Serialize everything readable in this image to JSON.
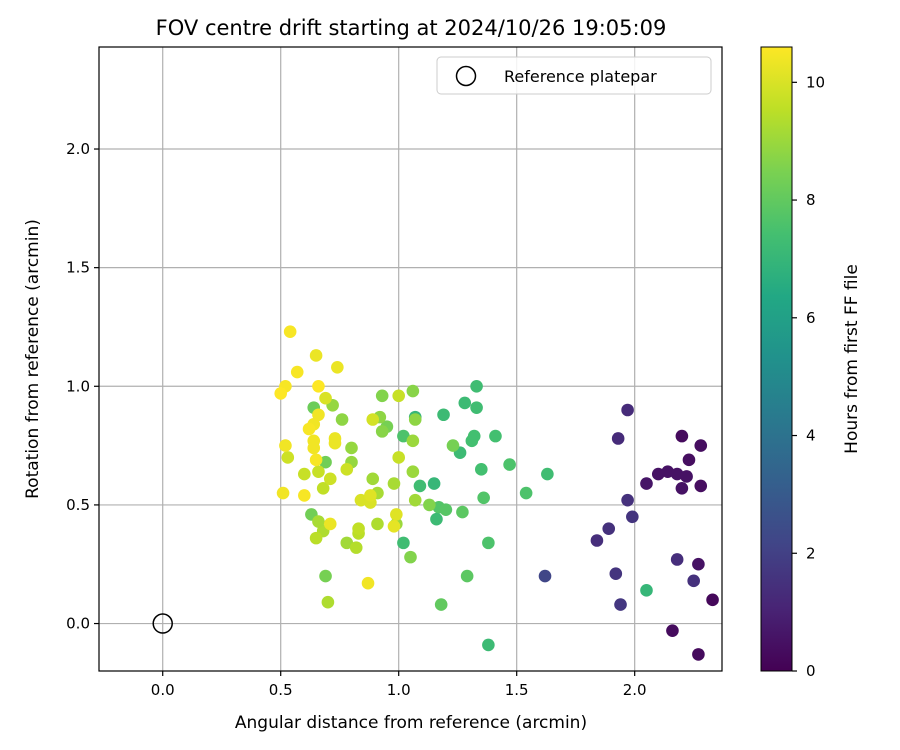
{
  "chart_data": {
    "type": "scatter",
    "title": "FOV centre drift starting at 2024/10/26 19:05:09",
    "xlabel": "Angular distance from reference (arcmin)",
    "ylabel": "Rotation from reference (arcmin)",
    "xlim": [
      -0.27,
      2.37
    ],
    "ylim": [
      -0.2,
      2.43
    ],
    "x_ticks": [
      "0.0",
      "0.5",
      "1.0",
      "1.5",
      "2.0"
    ],
    "x_tick_values": [
      0,
      0.5,
      1.0,
      1.5,
      2.0
    ],
    "y_ticks": [
      "0.0",
      "0.5",
      "1.0",
      "1.5",
      "2.0"
    ],
    "y_tick_values": [
      0,
      0.5,
      1.0,
      1.5,
      2.0
    ],
    "grid": true,
    "legend": {
      "position": "top-right",
      "entries": [
        "Reference platepar"
      ]
    },
    "reference_point": {
      "x": 0.0,
      "y": 0.0
    },
    "colorbar": {
      "label": "Hours from first FF file",
      "range": [
        0,
        10.6
      ],
      "ticks": [
        "0",
        "2",
        "4",
        "6",
        "8",
        "10"
      ],
      "tick_values": [
        0,
        2,
        4,
        6,
        8,
        10
      ],
      "colormap": "viridis"
    },
    "points": [
      {
        "x": 2.2,
        "y": 0.79,
        "h": 0.3
      },
      {
        "x": 2.28,
        "y": 0.75,
        "h": 0.4
      },
      {
        "x": 2.23,
        "y": 0.69,
        "h": 0.4
      },
      {
        "x": 2.1,
        "y": 0.63,
        "h": 0.5
      },
      {
        "x": 2.14,
        "y": 0.64,
        "h": 0.5
      },
      {
        "x": 2.18,
        "y": 0.63,
        "h": 0.5
      },
      {
        "x": 2.22,
        "y": 0.62,
        "h": 0.5
      },
      {
        "x": 2.05,
        "y": 0.59,
        "h": 0.6
      },
      {
        "x": 2.2,
        "y": 0.57,
        "h": 0.5
      },
      {
        "x": 2.28,
        "y": 0.58,
        "h": 0.4
      },
      {
        "x": 2.33,
        "y": 0.1,
        "h": 0.2
      },
      {
        "x": 2.16,
        "y": -0.03,
        "h": 0.3
      },
      {
        "x": 2.27,
        "y": -0.13,
        "h": 0.3
      },
      {
        "x": 2.27,
        "y": 0.25,
        "h": 0.5
      },
      {
        "x": 1.97,
        "y": 0.9,
        "h": 1.3
      },
      {
        "x": 1.93,
        "y": 0.78,
        "h": 1.3
      },
      {
        "x": 1.97,
        "y": 0.52,
        "h": 1.5
      },
      {
        "x": 1.99,
        "y": 0.45,
        "h": 1.6
      },
      {
        "x": 1.89,
        "y": 0.4,
        "h": 1.5
      },
      {
        "x": 1.84,
        "y": 0.35,
        "h": 1.4
      },
      {
        "x": 2.18,
        "y": 0.27,
        "h": 1.4
      },
      {
        "x": 2.25,
        "y": 0.18,
        "h": 1.5
      },
      {
        "x": 1.92,
        "y": 0.21,
        "h": 1.6
      },
      {
        "x": 1.94,
        "y": 0.08,
        "h": 1.7
      },
      {
        "x": 1.62,
        "y": 0.2,
        "h": 2.2
      },
      {
        "x": 2.05,
        "y": 0.14,
        "h": 7.0
      },
      {
        "x": 1.33,
        "y": 1.0,
        "h": 7.3
      },
      {
        "x": 1.28,
        "y": 0.93,
        "h": 7.2
      },
      {
        "x": 1.33,
        "y": 0.91,
        "h": 7.3
      },
      {
        "x": 1.19,
        "y": 0.88,
        "h": 7.2
      },
      {
        "x": 1.07,
        "y": 0.87,
        "h": 7.0
      },
      {
        "x": 1.41,
        "y": 0.79,
        "h": 7.4
      },
      {
        "x": 1.32,
        "y": 0.79,
        "h": 7.4
      },
      {
        "x": 1.31,
        "y": 0.77,
        "h": 7.4
      },
      {
        "x": 1.26,
        "y": 0.72,
        "h": 7.2
      },
      {
        "x": 1.47,
        "y": 0.67,
        "h": 7.6
      },
      {
        "x": 1.35,
        "y": 0.65,
        "h": 7.4
      },
      {
        "x": 1.63,
        "y": 0.63,
        "h": 7.3
      },
      {
        "x": 1.09,
        "y": 0.58,
        "h": 7.3
      },
      {
        "x": 1.15,
        "y": 0.59,
        "h": 7.0
      },
      {
        "x": 1.54,
        "y": 0.55,
        "h": 7.6
      },
      {
        "x": 1.36,
        "y": 0.53,
        "h": 7.7
      },
      {
        "x": 1.17,
        "y": 0.49,
        "h": 7.7
      },
      {
        "x": 1.2,
        "y": 0.48,
        "h": 7.8
      },
      {
        "x": 1.27,
        "y": 0.47,
        "h": 7.9
      },
      {
        "x": 1.16,
        "y": 0.44,
        "h": 7.2
      },
      {
        "x": 1.02,
        "y": 0.34,
        "h": 7.3
      },
      {
        "x": 1.38,
        "y": 0.34,
        "h": 7.6
      },
      {
        "x": 1.29,
        "y": 0.2,
        "h": 7.9
      },
      {
        "x": 1.18,
        "y": 0.08,
        "h": 8.0
      },
      {
        "x": 1.38,
        "y": -0.09,
        "h": 7.2
      },
      {
        "x": 1.02,
        "y": 0.79,
        "h": 7.6
      },
      {
        "x": 0.64,
        "y": 0.91,
        "h": 8.2
      },
      {
        "x": 0.69,
        "y": 0.68,
        "h": 8.3
      },
      {
        "x": 0.63,
        "y": 0.46,
        "h": 8.3
      },
      {
        "x": 0.69,
        "y": 0.2,
        "h": 8.4
      },
      {
        "x": 1.23,
        "y": 0.75,
        "h": 8.4
      },
      {
        "x": 1.13,
        "y": 0.5,
        "h": 8.6
      },
      {
        "x": 1.05,
        "y": 0.28,
        "h": 8.6
      },
      {
        "x": 0.95,
        "y": 0.83,
        "h": 8.4
      },
      {
        "x": 0.93,
        "y": 0.96,
        "h": 8.6
      },
      {
        "x": 1.06,
        "y": 0.98,
        "h": 8.7
      },
      {
        "x": 0.92,
        "y": 0.87,
        "h": 8.8
      },
      {
        "x": 0.93,
        "y": 0.81,
        "h": 8.7
      },
      {
        "x": 0.76,
        "y": 0.86,
        "h": 8.8
      },
      {
        "x": 0.72,
        "y": 0.92,
        "h": 8.9
      },
      {
        "x": 0.8,
        "y": 0.74,
        "h": 8.9
      },
      {
        "x": 0.8,
        "y": 0.68,
        "h": 8.9
      },
      {
        "x": 1.07,
        "y": 0.86,
        "h": 8.8
      },
      {
        "x": 1.06,
        "y": 0.77,
        "h": 9.0
      },
      {
        "x": 1.06,
        "y": 0.64,
        "h": 9.0
      },
      {
        "x": 1.07,
        "y": 0.52,
        "h": 9.1
      },
      {
        "x": 0.89,
        "y": 0.61,
        "h": 9.1
      },
      {
        "x": 0.91,
        "y": 0.55,
        "h": 9.2
      },
      {
        "x": 0.98,
        "y": 0.59,
        "h": 9.2
      },
      {
        "x": 0.91,
        "y": 0.42,
        "h": 9.3
      },
      {
        "x": 0.99,
        "y": 0.42,
        "h": 9.0
      },
      {
        "x": 0.78,
        "y": 0.34,
        "h": 9.1
      },
      {
        "x": 0.7,
        "y": 0.09,
        "h": 9.3
      },
      {
        "x": 0.68,
        "y": 0.39,
        "h": 9.3
      },
      {
        "x": 0.66,
        "y": 0.43,
        "h": 9.2
      },
      {
        "x": 0.82,
        "y": 0.32,
        "h": 9.4
      },
      {
        "x": 0.83,
        "y": 0.38,
        "h": 9.5
      },
      {
        "x": 0.83,
        "y": 0.4,
        "h": 9.6
      },
      {
        "x": 0.65,
        "y": 0.36,
        "h": 9.5
      },
      {
        "x": 0.68,
        "y": 0.57,
        "h": 9.6
      },
      {
        "x": 0.6,
        "y": 0.63,
        "h": 9.7
      },
      {
        "x": 0.66,
        "y": 0.64,
        "h": 9.7
      },
      {
        "x": 0.78,
        "y": 0.65,
        "h": 9.8
      },
      {
        "x": 0.71,
        "y": 0.61,
        "h": 9.8
      },
      {
        "x": 0.53,
        "y": 0.7,
        "h": 9.8
      },
      {
        "x": 1.0,
        "y": 0.7,
        "h": 9.7
      },
      {
        "x": 0.89,
        "y": 0.86,
        "h": 9.9
      },
      {
        "x": 0.69,
        "y": 0.95,
        "h": 10.0
      },
      {
        "x": 1.0,
        "y": 0.96,
        "h": 9.7
      },
      {
        "x": 0.84,
        "y": 0.52,
        "h": 10.0
      },
      {
        "x": 0.88,
        "y": 0.51,
        "h": 10.0
      },
      {
        "x": 0.88,
        "y": 0.54,
        "h": 10.1
      },
      {
        "x": 0.99,
        "y": 0.46,
        "h": 10.1
      },
      {
        "x": 0.98,
        "y": 0.41,
        "h": 10.2
      },
      {
        "x": 0.71,
        "y": 0.42,
        "h": 10.3
      },
      {
        "x": 0.87,
        "y": 0.17,
        "h": 10.4
      },
      {
        "x": 0.64,
        "y": 0.77,
        "h": 10.4
      },
      {
        "x": 0.64,
        "y": 0.74,
        "h": 10.4
      },
      {
        "x": 0.65,
        "y": 0.69,
        "h": 10.5
      },
      {
        "x": 0.73,
        "y": 0.78,
        "h": 10.3
      },
      {
        "x": 0.73,
        "y": 0.76,
        "h": 10.3
      },
      {
        "x": 0.66,
        "y": 0.88,
        "h": 10.4
      },
      {
        "x": 0.64,
        "y": 0.84,
        "h": 10.4
      },
      {
        "x": 0.62,
        "y": 0.82,
        "h": 10.5
      },
      {
        "x": 0.66,
        "y": 1.0,
        "h": 10.6
      },
      {
        "x": 0.65,
        "y": 1.13,
        "h": 10.3
      },
      {
        "x": 0.74,
        "y": 1.08,
        "h": 10.3
      },
      {
        "x": 0.57,
        "y": 1.06,
        "h": 10.5
      },
      {
        "x": 0.54,
        "y": 1.23,
        "h": 10.5
      },
      {
        "x": 0.52,
        "y": 1.0,
        "h": 10.5
      },
      {
        "x": 0.5,
        "y": 0.97,
        "h": 10.6
      },
      {
        "x": 0.52,
        "y": 0.75,
        "h": 10.4
      },
      {
        "x": 0.51,
        "y": 0.55,
        "h": 10.4
      },
      {
        "x": 0.6,
        "y": 0.54,
        "h": 10.5
      }
    ]
  }
}
